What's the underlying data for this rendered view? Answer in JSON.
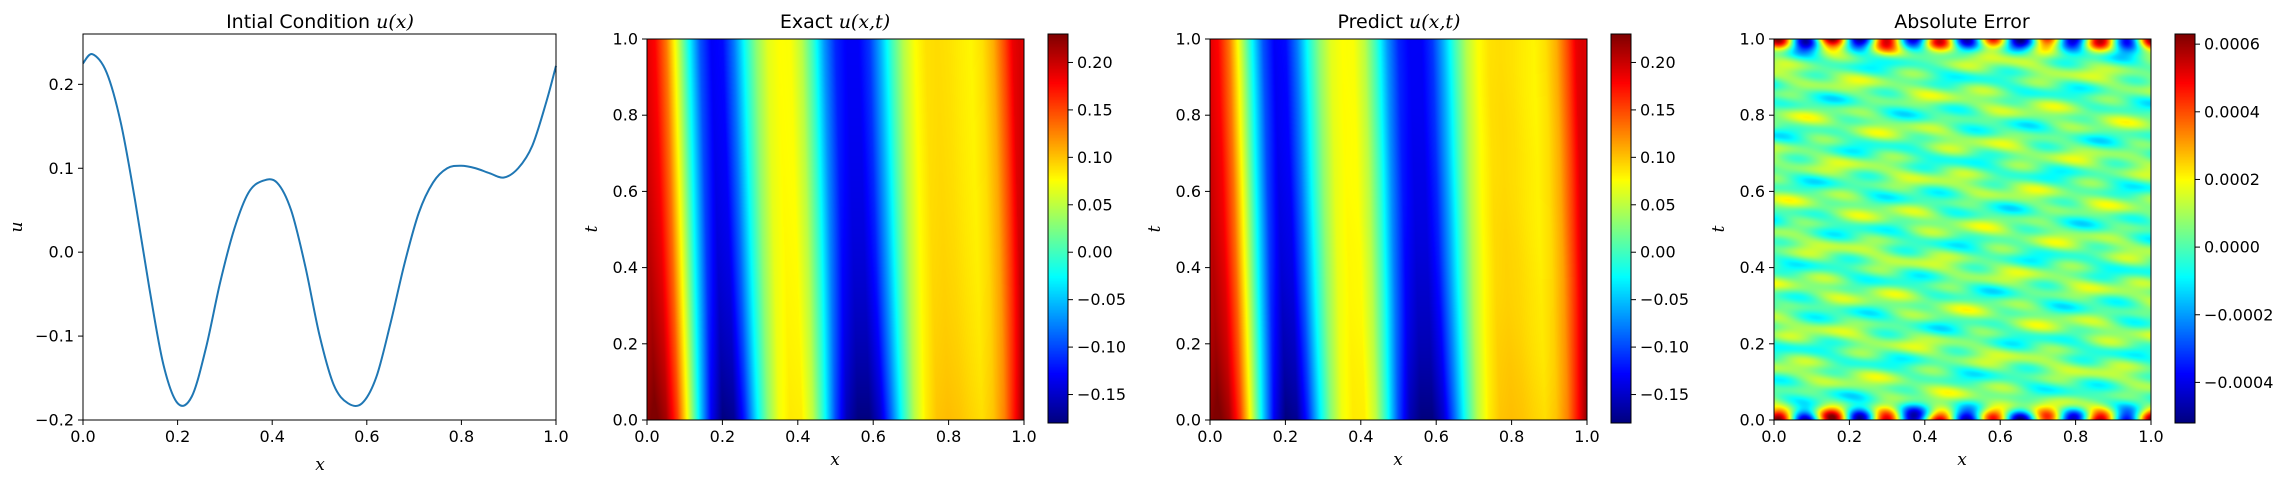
{
  "chart_data": [
    {
      "type": "line",
      "title": "Intial Condition u(x)",
      "title_parts": {
        "text": "Intial Condition ",
        "math": "u(x)"
      },
      "xlabel": "x",
      "ylabel": "u",
      "xlim": [
        0.0,
        1.0
      ],
      "ylim": [
        -0.2,
        0.26
      ],
      "xticks": [
        "0.0",
        "0.2",
        "0.4",
        "0.6",
        "0.8",
        "1.0"
      ],
      "yticks": [
        "−0.2",
        "−0.1",
        "0.0",
        "0.1",
        "0.2"
      ],
      "line_color": "#1f77b4",
      "series": [
        {
          "x": [
            0.0,
            0.02,
            0.05,
            0.08,
            0.11,
            0.14,
            0.17,
            0.2,
            0.23,
            0.26,
            0.29,
            0.32,
            0.35,
            0.38,
            0.41,
            0.44,
            0.47,
            0.5,
            0.53,
            0.56,
            0.59,
            0.62,
            0.65,
            0.68,
            0.71,
            0.74,
            0.77,
            0.8,
            0.83,
            0.86,
            0.89,
            0.92,
            0.95,
            0.98,
            1.0
          ],
          "y": [
            0.225,
            0.236,
            0.214,
            0.154,
            0.062,
            -0.042,
            -0.134,
            -0.18,
            -0.172,
            -0.114,
            -0.036,
            0.028,
            0.071,
            0.085,
            0.083,
            0.05,
            -0.017,
            -0.099,
            -0.158,
            -0.18,
            -0.18,
            -0.149,
            -0.085,
            -0.013,
            0.047,
            0.083,
            0.1,
            0.103,
            0.1,
            0.094,
            0.089,
            0.1,
            0.127,
            0.18,
            0.222
          ]
        }
      ]
    },
    {
      "type": "heatmap",
      "title": "Exact u(x,t)",
      "title_parts": {
        "text": "Exact ",
        "math": "u(x,t)"
      },
      "xlabel": "x",
      "ylabel": "t",
      "xlim": [
        0.0,
        1.0
      ],
      "ylim": [
        0.0,
        1.0
      ],
      "xticks": [
        "0.0",
        "0.2",
        "0.4",
        "0.6",
        "0.8",
        "1.0"
      ],
      "yticks": [
        "0.0",
        "0.2",
        "0.4",
        "0.6",
        "0.8",
        "1.0"
      ],
      "colormap": "jet",
      "vmin": -0.18,
      "vmax": 0.23,
      "colorbar_ticks": [
        "0.20",
        "0.15",
        "0.10",
        "0.05",
        "0.00",
        "−0.05",
        "−0.10",
        "−0.15"
      ]
    },
    {
      "type": "heatmap",
      "title": "Predict u(x,t)",
      "title_parts": {
        "text": "Predict ",
        "math": "u(x,t)"
      },
      "xlabel": "x",
      "ylabel": "t",
      "xlim": [
        0.0,
        1.0
      ],
      "ylim": [
        0.0,
        1.0
      ],
      "xticks": [
        "0.0",
        "0.2",
        "0.4",
        "0.6",
        "0.8",
        "1.0"
      ],
      "yticks": [
        "0.0",
        "0.2",
        "0.4",
        "0.6",
        "0.8",
        "1.0"
      ],
      "colormap": "jet",
      "vmin": -0.18,
      "vmax": 0.23,
      "colorbar_ticks": [
        "0.20",
        "0.15",
        "0.10",
        "0.05",
        "0.00",
        "−0.05",
        "−0.10",
        "−0.15"
      ]
    },
    {
      "type": "heatmap",
      "title": "Absolute Error",
      "title_parts": {
        "text": "Absolute Error",
        "math": ""
      },
      "xlabel": "x",
      "ylabel": "t",
      "xlim": [
        0.0,
        1.0
      ],
      "ylim": [
        0.0,
        1.0
      ],
      "xticks": [
        "0.0",
        "0.2",
        "0.4",
        "0.6",
        "0.8",
        "1.0"
      ],
      "yticks": [
        "0.0",
        "0.2",
        "0.4",
        "0.6",
        "0.8",
        "1.0"
      ],
      "colormap": "jet",
      "vmin": -0.00052,
      "vmax": 0.00063,
      "colorbar_ticks": [
        "0.0006",
        "0.0004",
        "0.0002",
        "0.0000",
        "−0.0002",
        "−0.0004"
      ]
    }
  ]
}
